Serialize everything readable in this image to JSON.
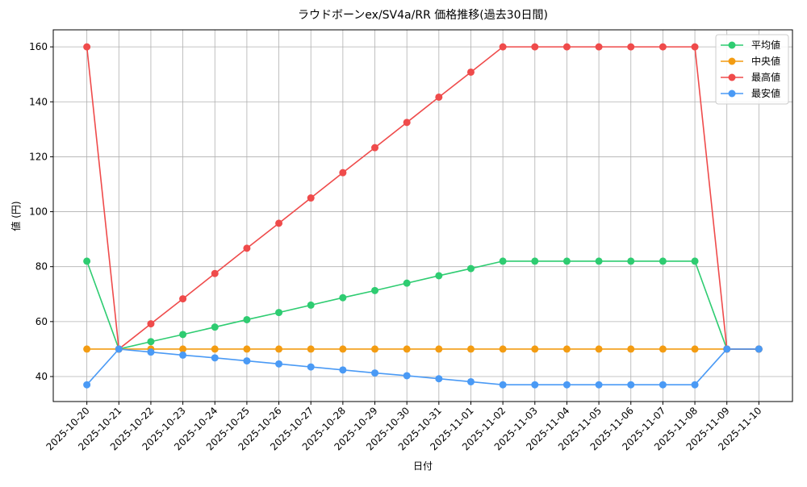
{
  "chart_data": {
    "type": "line",
    "title": "ラウドボーンex/SV4a/RR 価格推移(過去30日間)",
    "x_label": "日付",
    "y_label": "値 (円)",
    "categories": [
      "2025-10-20",
      "2025-10-21",
      "2025-10-22",
      "2025-10-23",
      "2025-10-24",
      "2025-10-25",
      "2025-10-26",
      "2025-10-27",
      "2025-10-28",
      "2025-10-29",
      "2025-10-30",
      "2025-10-31",
      "2025-11-01",
      "2025-11-02",
      "2025-11-03",
      "2025-11-04",
      "2025-11-05",
      "2025-11-06",
      "2025-11-07",
      "2025-11-08",
      "2025-11-09",
      "2025-11-10"
    ],
    "series": [
      {
        "name": "平均値",
        "color": "#2ecc71",
        "values": [
          82,
          50,
          52.7,
          55.3,
          58,
          60.7,
          63.3,
          66,
          68.7,
          71.3,
          74,
          76.7,
          79.3,
          82,
          82,
          82,
          82,
          82,
          82,
          82,
          50,
          50
        ]
      },
      {
        "name": "中央値",
        "color": "#f39c12",
        "values": [
          50,
          50,
          50,
          50,
          50,
          50,
          50,
          50,
          50,
          50,
          50,
          50,
          50,
          50,
          50,
          50,
          50,
          50,
          50,
          50,
          50,
          50
        ]
      },
      {
        "name": "最高値",
        "color": "#ef4b4b",
        "values": [
          160,
          50,
          59.2,
          68.3,
          77.5,
          86.7,
          95.8,
          105,
          114.2,
          123.3,
          132.5,
          141.7,
          150.8,
          160,
          160,
          160,
          160,
          160,
          160,
          160,
          50,
          50
        ]
      },
      {
        "name": "最安値",
        "color": "#4a9af5",
        "values": [
          37,
          50,
          48.9,
          47.8,
          46.8,
          45.7,
          44.6,
          43.5,
          42.4,
          41.3,
          40.3,
          39.2,
          38.1,
          37,
          37,
          37,
          37,
          37,
          37,
          37,
          50,
          50
        ]
      }
    ],
    "ylim": [
      30.9,
      166.2
    ],
    "yticks": [
      40,
      60,
      80,
      100,
      120,
      140,
      160
    ],
    "grid": true,
    "legend": "upper right"
  }
}
